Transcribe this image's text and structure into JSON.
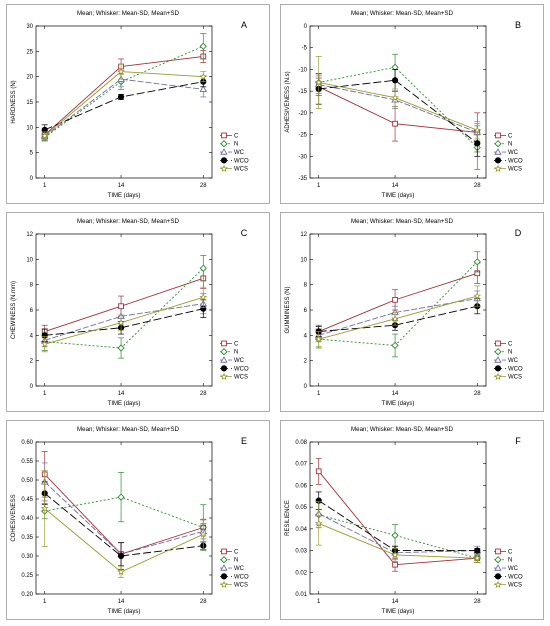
{
  "subtitle": "Mean;  Whisker: Mean-SD, Mean+SD",
  "xlabel": "TIME (days)",
  "legend": [
    "C",
    "N",
    "WC",
    "WCO",
    "WCS"
  ],
  "series_styles": {
    "C": {
      "color": "#a0303a",
      "dash": "",
      "marker": "square"
    },
    "N": {
      "color": "#2e8b2e",
      "dash": "2,2",
      "marker": "diamond"
    },
    "WC": {
      "color": "#7070a0",
      "dash": "6,2",
      "marker": "triangle"
    },
    "WCO": {
      "color": "#000000",
      "dash": "8,3",
      "marker": "circle"
    },
    "WCS": {
      "color": "#9a9a30",
      "dash": "",
      "marker": "star"
    }
  },
  "chart_data": [
    {
      "type": "line",
      "letter": "A",
      "ylabel": "HARDNESS (N)",
      "x": [
        1,
        14,
        28
      ],
      "ylim": [
        0,
        30
      ],
      "yticks": [
        0,
        5,
        10,
        15,
        20,
        25,
        30
      ],
      "series": [
        {
          "name": "C",
          "values": [
            8.5,
            22.0,
            24.0
          ],
          "sd": [
            0.8,
            1.5,
            1.2
          ]
        },
        {
          "name": "N",
          "values": [
            8.0,
            19.0,
            26.0
          ],
          "sd": [
            0.7,
            1.5,
            2.5
          ]
        },
        {
          "name": "WC",
          "values": [
            8.2,
            19.5,
            17.5
          ],
          "sd": [
            0.8,
            1.5,
            1.5
          ]
        },
        {
          "name": "WCO",
          "values": [
            9.5,
            16.0,
            19.0
          ],
          "sd": [
            1.0,
            0.5,
            1.0
          ]
        },
        {
          "name": "WCS",
          "values": [
            8.3,
            21.0,
            20.0
          ],
          "sd": [
            0.8,
            1.5,
            1.0
          ]
        }
      ]
    },
    {
      "type": "line",
      "letter": "B",
      "ylabel": "ADHESIVENESS (N.s)",
      "x": [
        1,
        14,
        28
      ],
      "ylim": [
        -35,
        0
      ],
      "yticks": [
        0,
        -5,
        -10,
        -15,
        -20,
        -25,
        -30,
        -35
      ],
      "series": [
        {
          "name": "C",
          "values": [
            -14.0,
            -22.5,
            -24.5
          ],
          "sd": [
            2.0,
            4.0,
            4.5
          ]
        },
        {
          "name": "N",
          "values": [
            -13.0,
            -9.5,
            -28.0
          ],
          "sd": [
            2.0,
            3.0,
            5.0
          ]
        },
        {
          "name": "WC",
          "values": [
            -13.5,
            -17.0,
            -24.5
          ],
          "sd": [
            2.0,
            2.0,
            2.0
          ]
        },
        {
          "name": "WCO",
          "values": [
            -14.5,
            -12.5,
            -27.0
          ],
          "sd": [
            3.5,
            2.5,
            3.0
          ]
        },
        {
          "name": "WCS",
          "values": [
            -13.0,
            -16.5,
            -24.0
          ],
          "sd": [
            6.0,
            2.0,
            2.0
          ]
        }
      ]
    },
    {
      "type": "line",
      "letter": "C",
      "ylabel": "CHEWINESS (N.mm)",
      "x": [
        1,
        14,
        28
      ],
      "ylim": [
        0,
        12
      ],
      "yticks": [
        0,
        2,
        4,
        6,
        8,
        10,
        12
      ],
      "series": [
        {
          "name": "C",
          "values": [
            4.3,
            6.3,
            8.5
          ],
          "sd": [
            0.5,
            0.8,
            0.8
          ]
        },
        {
          "name": "N",
          "values": [
            3.5,
            3.0,
            9.3
          ],
          "sd": [
            0.7,
            0.8,
            1.0
          ]
        },
        {
          "name": "WC",
          "values": [
            3.6,
            5.5,
            6.5
          ],
          "sd": [
            0.5,
            0.6,
            0.8
          ]
        },
        {
          "name": "WCO",
          "values": [
            4.0,
            4.6,
            6.1
          ],
          "sd": [
            0.5,
            0.5,
            0.7
          ]
        },
        {
          "name": "WCS",
          "values": [
            3.3,
            5.0,
            7.0
          ],
          "sd": [
            0.6,
            0.6,
            0.8
          ]
        }
      ]
    },
    {
      "type": "line",
      "letter": "D",
      "ylabel": "GUMMINESS (N)",
      "x": [
        1,
        14,
        28
      ],
      "ylim": [
        0,
        12
      ],
      "yticks": [
        0,
        2,
        4,
        6,
        8,
        10,
        12
      ],
      "series": [
        {
          "name": "C",
          "values": [
            4.3,
            6.8,
            8.9
          ],
          "sd": [
            0.5,
            0.8,
            0.8
          ]
        },
        {
          "name": "N",
          "values": [
            3.7,
            3.2,
            9.8
          ],
          "sd": [
            0.7,
            0.9,
            0.8
          ]
        },
        {
          "name": "WC",
          "values": [
            4.0,
            5.8,
            6.9
          ],
          "sd": [
            0.5,
            0.5,
            0.6
          ]
        },
        {
          "name": "WCO",
          "values": [
            4.3,
            4.8,
            6.3
          ],
          "sd": [
            0.4,
            0.4,
            0.6
          ]
        },
        {
          "name": "WCS",
          "values": [
            3.7,
            5.3,
            7.1
          ],
          "sd": [
            0.6,
            0.5,
            0.8
          ]
        }
      ]
    },
    {
      "type": "line",
      "letter": "E",
      "ylabel": "COHESIVENESS",
      "x": [
        1,
        14,
        28
      ],
      "ylim": [
        0.2,
        0.6
      ],
      "yticks": [
        0.2,
        0.25,
        0.3,
        0.35,
        0.4,
        0.45,
        0.5,
        0.55,
        0.6
      ],
      "series": [
        {
          "name": "C",
          "values": [
            0.515,
            0.305,
            0.375
          ],
          "sd": [
            0.06,
            0.03,
            0.02
          ]
        },
        {
          "name": "N",
          "values": [
            0.418,
            0.455,
            0.375
          ],
          "sd": [
            0.02,
            0.065,
            0.06
          ]
        },
        {
          "name": "WC",
          "values": [
            0.495,
            0.305,
            0.365
          ],
          "sd": [
            0.05,
            0.03,
            0.02
          ]
        },
        {
          "name": "WCO",
          "values": [
            0.465,
            0.3,
            0.327
          ],
          "sd": [
            0.03,
            0.035,
            0.01
          ]
        },
        {
          "name": "WCS",
          "values": [
            0.425,
            0.258,
            0.357
          ],
          "sd": [
            0.1,
            0.015,
            0.04
          ]
        }
      ]
    },
    {
      "type": "line",
      "letter": "F",
      "ylabel": "RESILIENCE",
      "x": [
        1,
        14,
        28
      ],
      "ylim": [
        0.01,
        0.08
      ],
      "yticks": [
        0.01,
        0.02,
        0.03,
        0.04,
        0.05,
        0.06,
        0.07,
        0.08
      ],
      "series": [
        {
          "name": "C",
          "values": [
            0.0665,
            0.0235,
            0.0265
          ],
          "sd": [
            0.006,
            0.003,
            0.002
          ]
        },
        {
          "name": "N",
          "values": [
            0.0465,
            0.037,
            0.0265
          ],
          "sd": [
            0.006,
            0.005,
            0.002
          ]
        },
        {
          "name": "WC",
          "values": [
            0.047,
            0.029,
            0.03
          ],
          "sd": [
            0.005,
            0.003,
            0.002
          ]
        },
        {
          "name": "WCO",
          "values": [
            0.053,
            0.03,
            0.03
          ],
          "sd": [
            0.004,
            0.002,
            0.001
          ]
        },
        {
          "name": "WCS",
          "values": [
            0.0425,
            0.028,
            0.0265
          ],
          "sd": [
            0.01,
            0.003,
            0.002
          ]
        }
      ]
    }
  ]
}
